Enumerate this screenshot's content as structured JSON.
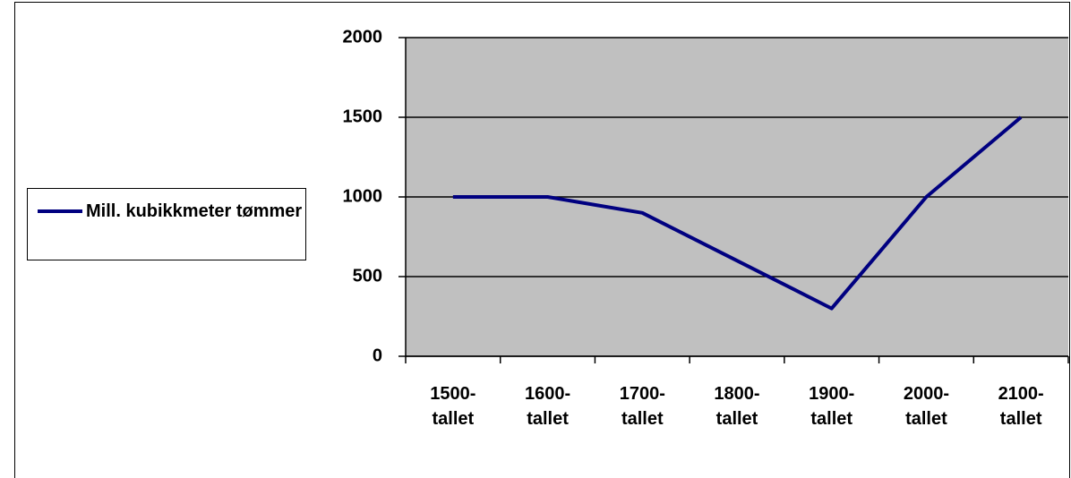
{
  "chart_data": {
    "type": "line",
    "categories": [
      "1500-tallet",
      "1600-tallet",
      "1700-tallet",
      "1800-tallet",
      "1900-tallet",
      "2000-tallet",
      "2100-tallet"
    ],
    "series": [
      {
        "name": "Mill. kubikkmeter tømmer",
        "color": "#000080",
        "values": [
          1000,
          1000,
          900,
          600,
          300,
          1000,
          1500
        ]
      }
    ],
    "ylim": [
      0,
      2000
    ],
    "yticks": [
      0,
      500,
      1000,
      1500,
      2000
    ],
    "grid": true,
    "legend": "left"
  }
}
